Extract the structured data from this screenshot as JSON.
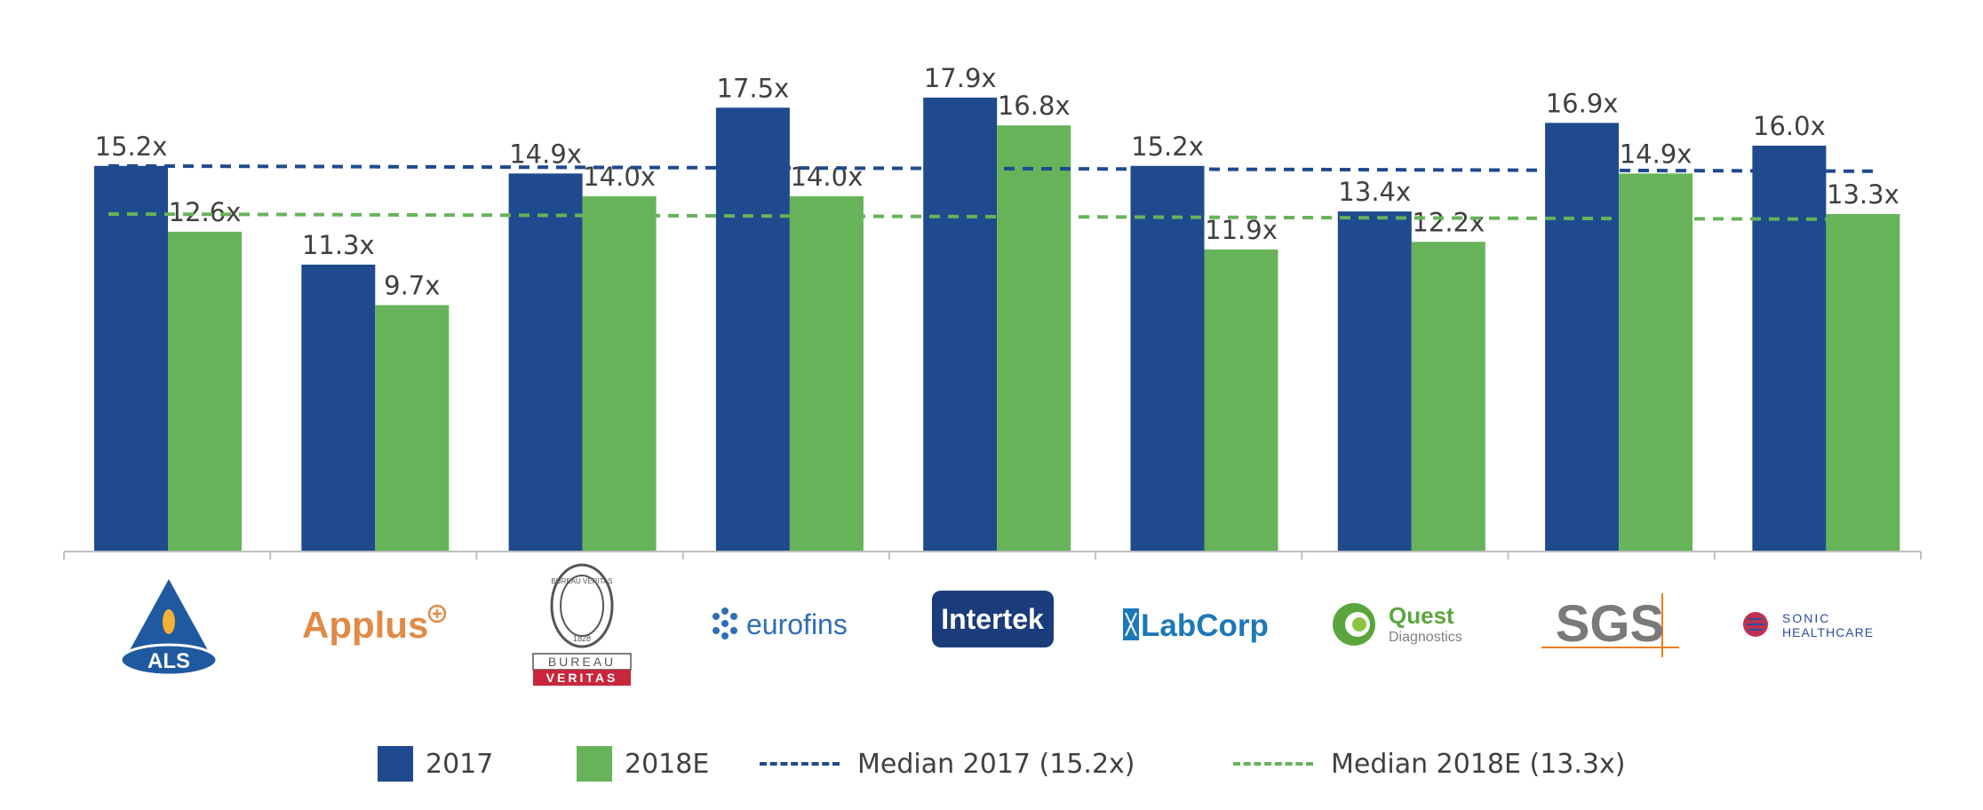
{
  "colors": {
    "s2017": "#1f4a8e",
    "s2018": "#67b35a",
    "axis": "#bfbfbf",
    "text": "#404040"
  },
  "chart_data": {
    "type": "bar",
    "categories": [
      "ALS",
      "Applus",
      "Bureau Veritas",
      "Eurofins",
      "Intertek",
      "LabCorp",
      "Quest Diagnostics",
      "SGS",
      "Sonic Healthcare"
    ],
    "series": [
      {
        "name": "2017",
        "values": [
          15.2,
          11.3,
          14.9,
          17.5,
          17.9,
          15.2,
          13.4,
          16.9,
          16.0
        ],
        "labels": [
          "15.2x",
          "11.3x",
          "14.9x",
          "17.5x",
          "17.9x",
          "15.2x",
          "13.4x",
          "16.9x",
          "16.0x"
        ]
      },
      {
        "name": "2018E",
        "values": [
          12.6,
          9.7,
          14.0,
          14.0,
          16.8,
          11.9,
          12.2,
          14.9,
          13.3
        ],
        "labels": [
          "12.6x",
          "9.7x",
          "14.0x",
          "14.0x",
          "16.8x",
          "11.9x",
          "12.2x",
          "14.9x",
          "13.3x"
        ]
      }
    ],
    "medians": [
      {
        "name": "Median 2017 (15.2x)",
        "value": 15.2
      },
      {
        "name": "Median 2018E (13.3x)",
        "value": 13.3
      }
    ],
    "ylim": [
      0,
      20
    ],
    "grid": false,
    "legend_position": "bottom"
  },
  "logos": {
    "als": "ALS",
    "applus": "Applus",
    "bv_ring": "BUREAU VERITAS",
    "bv_year": "1828",
    "bv_top": "BUREAU",
    "bv_bottom": "VERITAS",
    "eurofins": "eurofins",
    "intertek": "Intertek",
    "labcorp": "LabCorp",
    "quest_1": "Quest",
    "quest_2": "Diagnostics",
    "sgs": "SGS",
    "sonic_1": "SONIC",
    "sonic_2": "HEALTHCARE"
  },
  "legend": {
    "s2017": "2017",
    "s2018": "2018E",
    "m2017": "Median 2017 (15.2x)",
    "m2018": "Median 2018E (13.3x)"
  }
}
